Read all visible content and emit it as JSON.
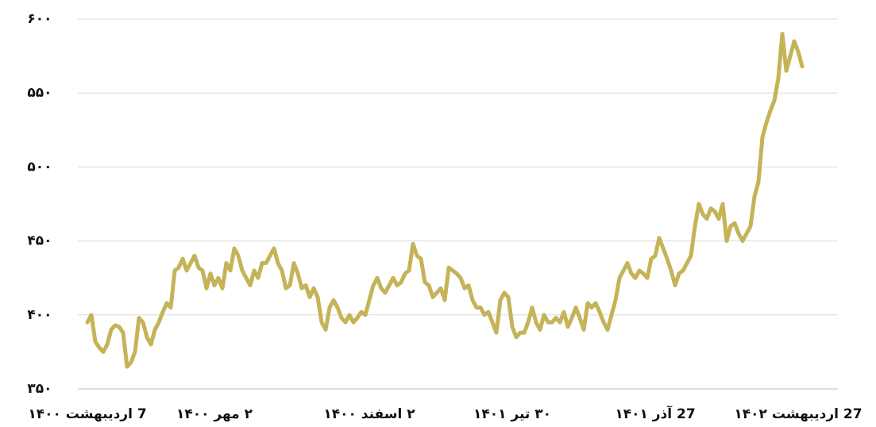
{
  "chart_data": {
    "type": "line",
    "categories": [
      "7 اردیبهشت ۱۴۰۰",
      null,
      null,
      null,
      null,
      null,
      null,
      null,
      null,
      null,
      null,
      null,
      null,
      null,
      null,
      null,
      null,
      null,
      null,
      null,
      null,
      null,
      null,
      null,
      null,
      null,
      null,
      null,
      null,
      null,
      null,
      null,
      "۲ مهر ۱۴۰۰",
      null,
      null,
      null,
      null,
      null,
      null,
      null,
      null,
      null,
      null,
      null,
      null,
      null,
      null,
      null,
      null,
      null,
      null,
      null,
      null,
      null,
      null,
      null,
      null,
      null,
      null,
      null,
      null,
      null,
      null,
      null,
      null,
      null,
      null,
      null,
      null,
      null,
      null,
      "۲ اسفند ۱۴۰۰",
      null,
      null,
      null,
      null,
      null,
      null,
      null,
      null,
      null,
      null,
      null,
      null,
      null,
      null,
      null,
      null,
      null,
      null,
      null,
      null,
      null,
      null,
      null,
      null,
      null,
      null,
      null,
      null,
      null,
      null,
      null,
      null,
      null,
      null,
      null,
      "۳۰ تیر ۱۴۰۱",
      null,
      null,
      null,
      null,
      null,
      null,
      null,
      null,
      null,
      null,
      null,
      null,
      null,
      null,
      null,
      null,
      null,
      null,
      null,
      null,
      null,
      null,
      null,
      null,
      null,
      null,
      null,
      null,
      null,
      null,
      null,
      null,
      null,
      null,
      null,
      "27 آذر ۱۴۰۱",
      null,
      null,
      null,
      null,
      null,
      null,
      null,
      null,
      null,
      null,
      null,
      null,
      null,
      null,
      null,
      null,
      null,
      null,
      null,
      null,
      null,
      null,
      null,
      null,
      null,
      null,
      null,
      null,
      null,
      null,
      null,
      null,
      null,
      null,
      null,
      "27 اردیبهشت ۱۴۰۲",
      null
    ],
    "series": [
      {
        "name": null,
        "color": "#c5b358",
        "values": [
          395,
          400,
          382,
          378,
          375,
          380,
          390,
          393,
          392,
          388,
          365,
          368,
          375,
          398,
          395,
          385,
          380,
          390,
          395,
          402,
          408,
          405,
          430,
          432,
          438,
          430,
          435,
          440,
          432,
          430,
          418,
          428,
          420,
          425,
          418,
          435,
          430,
          445,
          440,
          430,
          425,
          420,
          430,
          425,
          435,
          435,
          440,
          445,
          435,
          430,
          418,
          420,
          435,
          428,
          418,
          420,
          412,
          418,
          412,
          395,
          390,
          405,
          410,
          405,
          398,
          395,
          400,
          395,
          398,
          402,
          400,
          410,
          420,
          425,
          418,
          415,
          420,
          425,
          420,
          422,
          428,
          430,
          448,
          440,
          438,
          422,
          420,
          412,
          415,
          418,
          410,
          432,
          430,
          428,
          425,
          418,
          420,
          410,
          405,
          405,
          400,
          402,
          395,
          388,
          410,
          415,
          412,
          392,
          385,
          388,
          388,
          395,
          405,
          395,
          390,
          400,
          395,
          395,
          398,
          395,
          402,
          392,
          398,
          405,
          398,
          390,
          408,
          405,
          408,
          402,
          395,
          390,
          400,
          410,
          425,
          430,
          435,
          428,
          425,
          430,
          428,
          425,
          438,
          440,
          452,
          445,
          438,
          430,
          420,
          428,
          430,
          435,
          440,
          460,
          475,
          468,
          465,
          472,
          470,
          465,
          475,
          450,
          460,
          462,
          455,
          450,
          455,
          460,
          480,
          490,
          520,
          530,
          538,
          545,
          560,
          590,
          565,
          575,
          585,
          578,
          568
        ]
      }
    ],
    "ylim": [
      350,
      600
    ],
    "yticks": [
      {
        "value": 350,
        "label": "۳۵۰"
      },
      {
        "value": 400,
        "label": "۴۰۰"
      },
      {
        "value": 450,
        "label": "۴۵۰"
      },
      {
        "value": 500,
        "label": "۵۰۰"
      },
      {
        "value": 550,
        "label": "۵۵۰"
      },
      {
        "value": 600,
        "label": "۶۰۰"
      }
    ],
    "grid": true
  }
}
